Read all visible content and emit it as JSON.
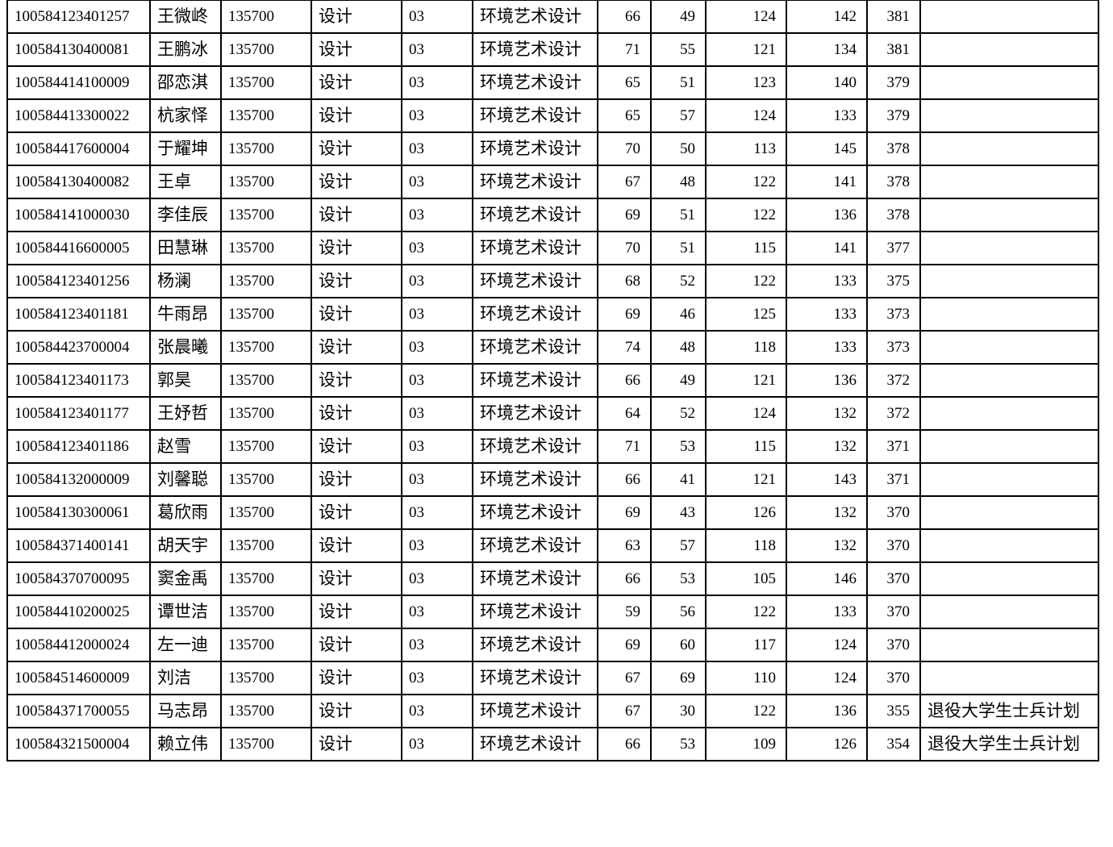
{
  "table": {
    "rows": [
      [
        "100584123401257",
        "王微峂",
        "135700",
        "设计",
        "03",
        "环境艺术设计",
        "66",
        "49",
        "124",
        "142",
        "381",
        ""
      ],
      [
        "100584130400081",
        "王鹏冰",
        "135700",
        "设计",
        "03",
        "环境艺术设计",
        "71",
        "55",
        "121",
        "134",
        "381",
        ""
      ],
      [
        "100584414100009",
        "邵恋淇",
        "135700",
        "设计",
        "03",
        "环境艺术设计",
        "65",
        "51",
        "123",
        "140",
        "379",
        ""
      ],
      [
        "100584413300022",
        "杭家怿",
        "135700",
        "设计",
        "03",
        "环境艺术设计",
        "65",
        "57",
        "124",
        "133",
        "379",
        ""
      ],
      [
        "100584417600004",
        "于耀坤",
        "135700",
        "设计",
        "03",
        "环境艺术设计",
        "70",
        "50",
        "113",
        "145",
        "378",
        ""
      ],
      [
        "100584130400082",
        "王卓",
        "135700",
        "设计",
        "03",
        "环境艺术设计",
        "67",
        "48",
        "122",
        "141",
        "378",
        ""
      ],
      [
        "100584141000030",
        "李佳辰",
        "135700",
        "设计",
        "03",
        "环境艺术设计",
        "69",
        "51",
        "122",
        "136",
        "378",
        ""
      ],
      [
        "100584416600005",
        "田慧琳",
        "135700",
        "设计",
        "03",
        "环境艺术设计",
        "70",
        "51",
        "115",
        "141",
        "377",
        ""
      ],
      [
        "100584123401256",
        "杨澜",
        "135700",
        "设计",
        "03",
        "环境艺术设计",
        "68",
        "52",
        "122",
        "133",
        "375",
        ""
      ],
      [
        "100584123401181",
        "牛雨昂",
        "135700",
        "设计",
        "03",
        "环境艺术设计",
        "69",
        "46",
        "125",
        "133",
        "373",
        ""
      ],
      [
        "100584423700004",
        "张晨曦",
        "135700",
        "设计",
        "03",
        "环境艺术设计",
        "74",
        "48",
        "118",
        "133",
        "373",
        ""
      ],
      [
        "100584123401173",
        "郭昊",
        "135700",
        "设计",
        "03",
        "环境艺术设计",
        "66",
        "49",
        "121",
        "136",
        "372",
        ""
      ],
      [
        "100584123401177",
        "王妤哲",
        "135700",
        "设计",
        "03",
        "环境艺术设计",
        "64",
        "52",
        "124",
        "132",
        "372",
        ""
      ],
      [
        "100584123401186",
        "赵雪",
        "135700",
        "设计",
        "03",
        "环境艺术设计",
        "71",
        "53",
        "115",
        "132",
        "371",
        ""
      ],
      [
        "100584132000009",
        "刘馨聪",
        "135700",
        "设计",
        "03",
        "环境艺术设计",
        "66",
        "41",
        "121",
        "143",
        "371",
        ""
      ],
      [
        "100584130300061",
        "葛欣雨",
        "135700",
        "设计",
        "03",
        "环境艺术设计",
        "69",
        "43",
        "126",
        "132",
        "370",
        ""
      ],
      [
        "100584371400141",
        "胡天宇",
        "135700",
        "设计",
        "03",
        "环境艺术设计",
        "63",
        "57",
        "118",
        "132",
        "370",
        ""
      ],
      [
        "100584370700095",
        "窦金禹",
        "135700",
        "设计",
        "03",
        "环境艺术设计",
        "66",
        "53",
        "105",
        "146",
        "370",
        ""
      ],
      [
        "100584410200025",
        "谭世洁",
        "135700",
        "设计",
        "03",
        "环境艺术设计",
        "59",
        "56",
        "122",
        "133",
        "370",
        ""
      ],
      [
        "100584412000024",
        "左一迪",
        "135700",
        "设计",
        "03",
        "环境艺术设计",
        "69",
        "60",
        "117",
        "124",
        "370",
        ""
      ],
      [
        "100584514600009",
        "刘洁",
        "135700",
        "设计",
        "03",
        "环境艺术设计",
        "67",
        "69",
        "110",
        "124",
        "370",
        ""
      ],
      [
        "100584371700055",
        "马志昂",
        "135700",
        "设计",
        "03",
        "环境艺术设计",
        "67",
        "30",
        "122",
        "136",
        "355",
        "退役大学生士兵计划"
      ],
      [
        "100584321500004",
        "赖立伟",
        "135700",
        "设计",
        "03",
        "环境艺术设计",
        "66",
        "53",
        "109",
        "126",
        "354",
        "退役大学生士兵计划"
      ]
    ]
  }
}
